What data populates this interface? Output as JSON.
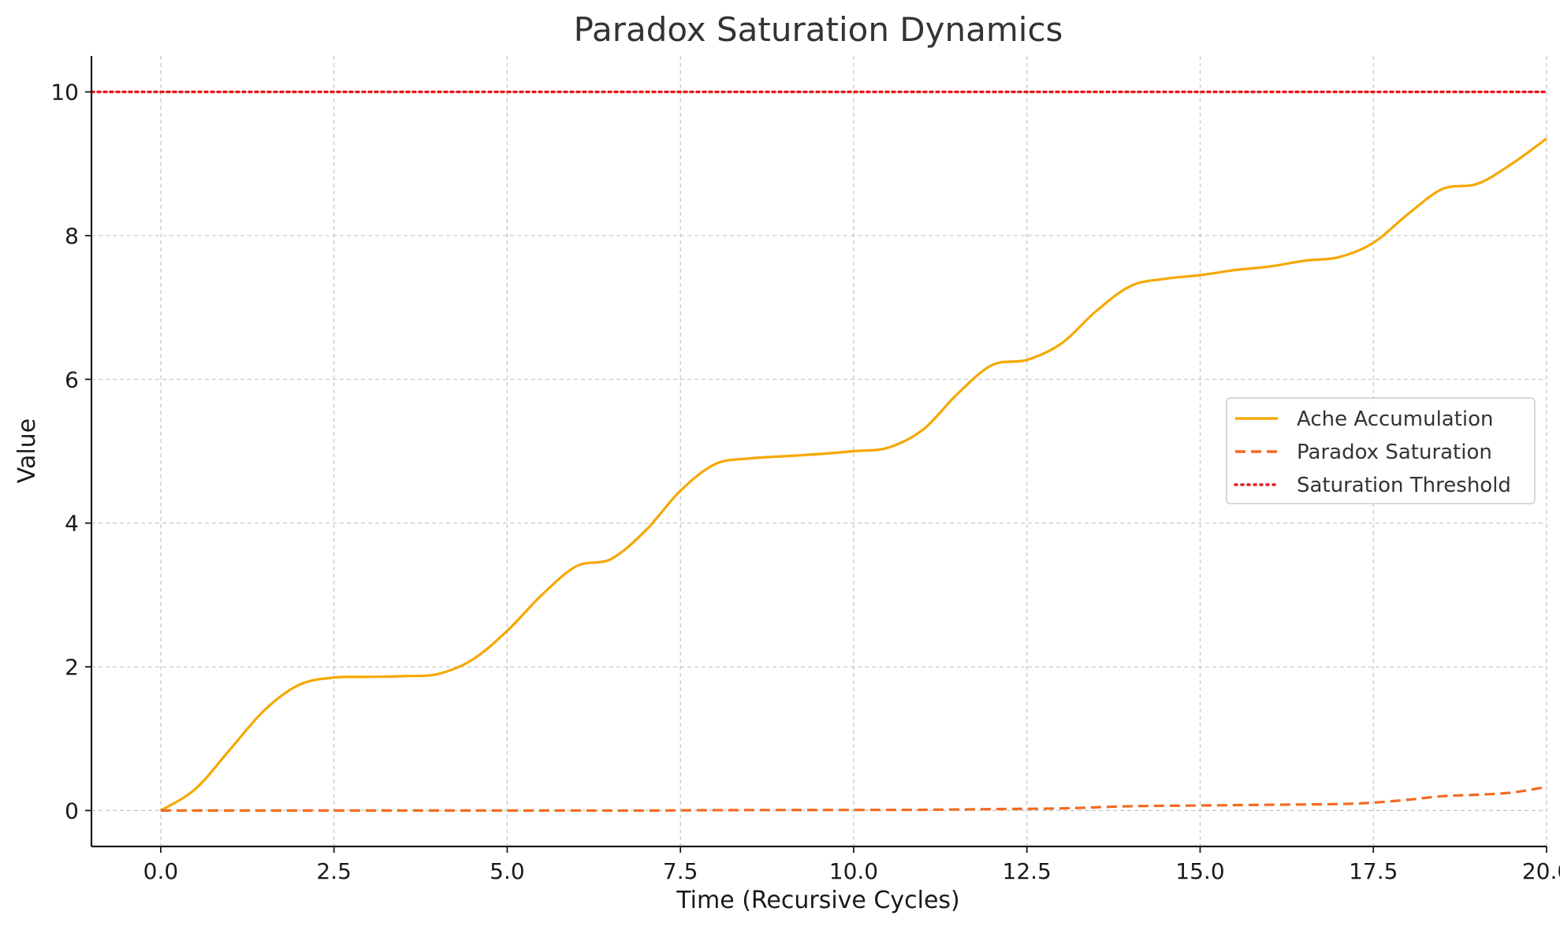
{
  "chart_data": {
    "type": "line",
    "title": "Paradox Saturation Dynamics",
    "xlabel": "Time (Recursive Cycles)",
    "ylabel": "Value",
    "xlim": [
      -1,
      20
    ],
    "ylim": [
      -0.5,
      10.5
    ],
    "xticks": [
      0.0,
      2.5,
      5.0,
      7.5,
      10.0,
      12.5,
      15.0,
      17.5,
      20.0
    ],
    "xtick_labels": [
      "0.0",
      "2.5",
      "5.0",
      "7.5",
      "10.0",
      "12.5",
      "15.0",
      "17.5",
      "20.0"
    ],
    "yticks": [
      0,
      2,
      4,
      6,
      8,
      10
    ],
    "ytick_labels": [
      "0",
      "2",
      "4",
      "6",
      "8",
      "10"
    ],
    "grid": true,
    "legend_position": "center-right",
    "series": [
      {
        "name": "Ache Accumulation",
        "color": "#f5a800",
        "style": "solid",
        "x": [
          0,
          0.5,
          1.0,
          1.5,
          2.0,
          2.5,
          3.0,
          3.5,
          4.0,
          4.5,
          5.0,
          5.5,
          6.0,
          6.5,
          7.0,
          7.5,
          8.0,
          8.5,
          9.0,
          9.5,
          10.0,
          10.5,
          11.0,
          11.5,
          12.0,
          12.5,
          13.0,
          13.5,
          14.0,
          14.5,
          15.0,
          15.5,
          16.0,
          16.5,
          17.0,
          17.5,
          18.0,
          18.5,
          19.0,
          19.5,
          20.0
        ],
        "values": [
          0.0,
          0.3,
          0.85,
          1.4,
          1.75,
          1.85,
          1.86,
          1.87,
          1.9,
          2.1,
          2.5,
          3.0,
          3.4,
          3.5,
          3.9,
          4.45,
          4.82,
          4.9,
          4.93,
          4.96,
          5.0,
          5.05,
          5.3,
          5.8,
          6.2,
          6.27,
          6.5,
          6.95,
          7.3,
          7.4,
          7.45,
          7.52,
          7.57,
          7.65,
          7.7,
          7.9,
          8.3,
          8.65,
          8.72,
          9.0,
          9.35
        ]
      },
      {
        "name": "Paradox Saturation",
        "color": "#f26b21",
        "style": "dashed",
        "x": [
          0,
          1,
          2,
          3,
          4,
          5,
          6,
          7,
          8,
          9,
          10,
          11,
          12,
          13,
          14,
          15,
          16,
          17,
          17.5,
          18,
          18.5,
          19,
          19.5,
          20.0
        ],
        "values": [
          0.0,
          0.0,
          0.0,
          0.0,
          0.0,
          0.0,
          0.0,
          0.0,
          0.005,
          0.007,
          0.008,
          0.01,
          0.02,
          0.03,
          0.06,
          0.07,
          0.08,
          0.09,
          0.11,
          0.15,
          0.2,
          0.22,
          0.25,
          0.33
        ]
      },
      {
        "name": "Saturation Threshold",
        "color": "#e8191c",
        "style": "dotted",
        "x": [
          -1,
          20
        ],
        "values": [
          10,
          10
        ]
      }
    ]
  }
}
